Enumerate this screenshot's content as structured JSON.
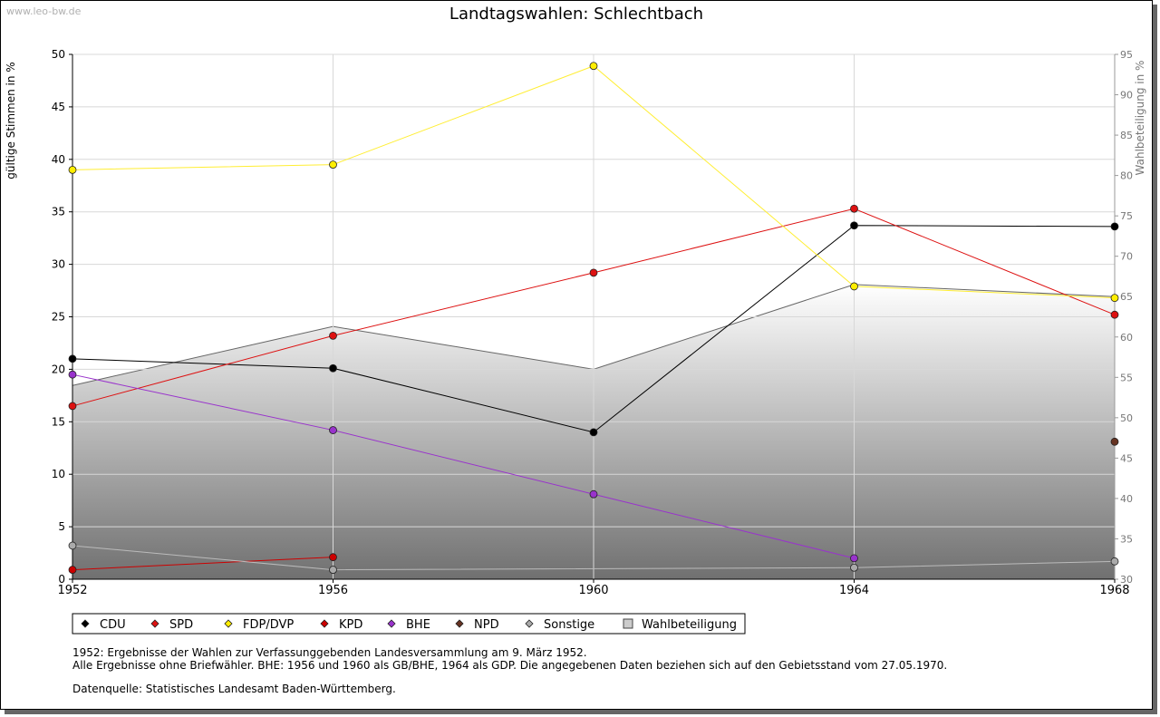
{
  "watermark": "www.leo-bw.de",
  "notes": {
    "line1": "1952: Ergebnisse der Wahlen zur Verfassunggebenden Landesversammlung am 9. März 1952.",
    "line2": "Alle Ergebnisse ohne Briefwähler. BHE: 1956 und 1960 als GB/BHE, 1964 als GDP. Die angegebenen Daten beziehen sich auf den Gebietsstand vom 27.05.1970.",
    "source": "Datenquelle: Statistisches Landesamt Baden-Württemberg."
  },
  "chart_data": {
    "type": "line",
    "title": "Landtagswahlen: Schlechtbach",
    "ylabel": "gültige Stimmen in %",
    "y2label": "Wahlbeteiligung in %",
    "x": [
      1952,
      1956,
      1960,
      1964,
      1968
    ],
    "ylim": [
      0,
      50
    ],
    "yticks": [
      0,
      5,
      10,
      15,
      20,
      25,
      30,
      35,
      40,
      45,
      50
    ],
    "y2lim": [
      30,
      95
    ],
    "y2ticks": [
      30,
      35,
      40,
      45,
      50,
      55,
      60,
      65,
      70,
      75,
      80,
      85,
      90,
      95
    ],
    "grid": true,
    "legend": "bottom",
    "series": [
      {
        "name": "CDU",
        "color": "#000000",
        "line": "#000000",
        "values": [
          21.0,
          20.1,
          14.0,
          33.7,
          33.6
        ]
      },
      {
        "name": "SPD",
        "color": "#dd1111",
        "line": "#dd1111",
        "values": [
          16.5,
          23.2,
          29.2,
          35.3,
          25.2
        ]
      },
      {
        "name": "FDP/DVP",
        "color": "#ffee00",
        "line": "#ffee33",
        "values": [
          39.0,
          39.5,
          48.9,
          27.9,
          26.8
        ]
      },
      {
        "name": "KPD",
        "color": "#cc0000",
        "line": "#cc0000",
        "values": [
          0.9,
          2.1,
          null,
          null,
          null
        ]
      },
      {
        "name": "BHE",
        "color": "#9933cc",
        "line": "#9933cc",
        "values": [
          19.5,
          14.2,
          8.1,
          2.0,
          null
        ]
      },
      {
        "name": "NPD",
        "color": "#663322",
        "line": "#663322",
        "values": [
          null,
          null,
          null,
          null,
          13.1
        ]
      },
      {
        "name": "Sonstige",
        "color": "#aaaaaa",
        "line": "#bbbbbb",
        "values": [
          3.2,
          0.9,
          null,
          1.1,
          1.7
        ]
      }
    ],
    "turnout": {
      "name": "Wahlbeteiligung",
      "color": "#cccccc",
      "values": [
        54.0,
        61.3,
        56.0,
        66.5,
        65.0
      ]
    }
  }
}
